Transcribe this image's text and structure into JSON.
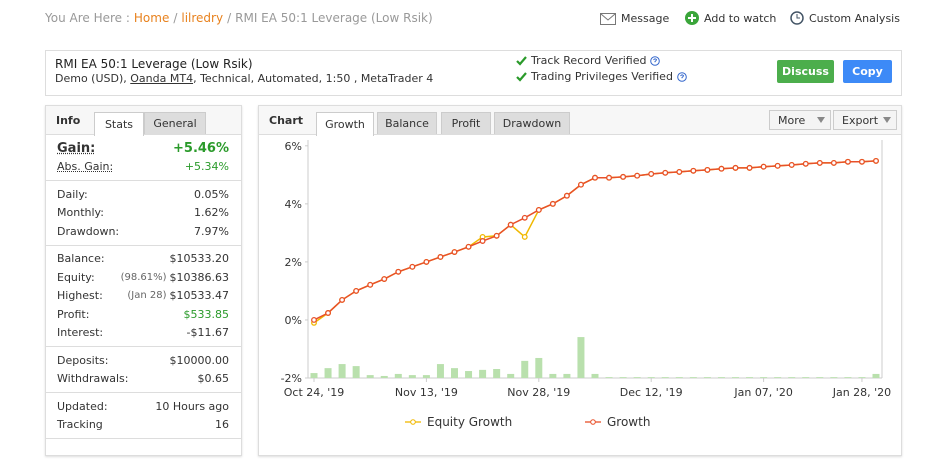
{
  "breadcrumb": {
    "prefix": "You Are Here :",
    "separator": "/",
    "items": [
      "Home",
      "lilredry",
      "RMI EA 50:1 Leverage (Low Rsik)"
    ]
  },
  "actions": [
    "Message",
    "Add to watch",
    "Custom Analysis"
  ],
  "account": {
    "name": "RMI EA 50:1 Leverage (Low Rsik)",
    "details": [
      "Demo (USD), ",
      "Oanda MT4",
      ", Technical, Automated, 1:50 , MetaTrader 4"
    ],
    "verified": [
      "Track Record Verified",
      "Trading Privileges Verified"
    ],
    "buttons": [
      "Discuss",
      "Copy"
    ]
  },
  "info": {
    "title": "Info",
    "tabs": [
      "Stats",
      "General"
    ],
    "sections": [
      [
        {
          "label": "Gain:",
          "value": "+5.46%",
          "color": "#2a9a2a"
        },
        {
          "label": "Abs. Gain:",
          "value": "+5.34%",
          "color": "#2a9a2a"
        }
      ],
      [
        {
          "label": "Daily:",
          "value": "0.05%"
        },
        {
          "label": "Monthly:",
          "value": "1.62%"
        },
        {
          "label": "Drawdown:",
          "value": "7.97%"
        }
      ],
      [
        {
          "label": "Balance:",
          "value": "$10533.20"
        },
        {
          "label": "Equity:",
          "note": "(98.61%)",
          "value": "$10386.63"
        },
        {
          "label": "Highest:",
          "note": "(Jan 28)",
          "value": "$10533.47"
        },
        {
          "label": "Profit:",
          "value": "$533.85",
          "color": "#2a9a2a"
        },
        {
          "label": "Interest:",
          "value": "-$11.67"
        }
      ],
      [
        {
          "label": "Deposits:",
          "value": "$10000.00"
        },
        {
          "label": "Withdrawals:",
          "value": "$0.65"
        }
      ],
      [
        {
          "label": "Updated:",
          "value": "10 Hours ago"
        },
        {
          "label": "Tracking",
          "value": "16"
        }
      ]
    ]
  },
  "chart_panel": {
    "title": "Chart",
    "tabs": [
      "Growth",
      "Balance",
      "Profit",
      "Drawdown"
    ],
    "menus": [
      "More",
      "Export"
    ],
    "chart_data": {
      "type": "line",
      "categories": [
        "Oct 24, '19",
        null,
        null,
        null,
        null,
        null,
        null,
        null,
        "Nov 13, '19",
        null,
        null,
        null,
        null,
        null,
        null,
        null,
        "Nov 28, '19",
        null,
        null,
        null,
        null,
        null,
        null,
        null,
        "Dec 12, '19",
        null,
        null,
        null,
        null,
        null,
        null,
        null,
        "Jan 07, '20",
        null,
        null,
        null,
        null,
        null,
        null,
        "Jan 28, '20",
        null
      ],
      "ylim": [
        -2,
        6.2
      ],
      "yticks": [
        {
          "value": -2,
          "label": "-2%"
        },
        {
          "value": 0,
          "label": "0%"
        },
        {
          "value": 2,
          "label": "2%"
        },
        {
          "value": 4,
          "label": "4%"
        },
        {
          "value": 6,
          "label": "6%"
        }
      ],
      "bars": {
        "color": "#b9e0ad",
        "values": [
          -1.83,
          -1.66,
          -1.52,
          -1.59,
          -1.9,
          -1.93,
          -1.86,
          -1.9,
          -1.9,
          -1.52,
          -1.66,
          -1.76,
          -1.72,
          -1.69,
          -1.86,
          -1.41,
          -1.31,
          -1.86,
          -1.86,
          -0.59,
          -1.86,
          -1.97,
          -1.97,
          -1.97,
          -1.97,
          -1.97,
          -1.97,
          -1.97,
          -1.97,
          -1.97,
          -1.97,
          -1.97,
          -1.97,
          -1.97,
          -1.97,
          -1.97,
          -1.97,
          -1.97,
          -1.97,
          -1.97,
          -1.86
        ]
      },
      "series": [
        {
          "name": "Equity Growth",
          "color": "#f0b800",
          "values": [
            -0.1,
            0.24,
            0.69,
            1.0,
            1.21,
            1.41,
            1.66,
            1.83,
            2.0,
            2.17,
            2.34,
            2.52,
            2.86,
            2.9,
            3.28,
            2.86,
            3.79,
            4.0,
            4.28,
            4.66,
            4.9,
            4.9,
            4.93,
            4.97,
            5.03,
            5.07,
            5.1,
            5.14,
            5.17,
            5.21,
            5.24,
            5.24,
            5.28,
            5.31,
            5.34,
            5.38,
            5.41,
            5.41,
            5.45,
            5.45,
            5.48
          ]
        },
        {
          "name": "Growth",
          "color": "#e8502a",
          "values": [
            0.0,
            0.24,
            0.69,
            1.0,
            1.21,
            1.41,
            1.66,
            1.83,
            2.0,
            2.17,
            2.34,
            2.52,
            2.72,
            2.9,
            3.28,
            3.52,
            3.79,
            4.0,
            4.28,
            4.66,
            4.9,
            4.9,
            4.93,
            4.97,
            5.03,
            5.07,
            5.1,
            5.14,
            5.17,
            5.21,
            5.24,
            5.24,
            5.28,
            5.31,
            5.34,
            5.38,
            5.41,
            5.41,
            5.45,
            5.45,
            5.48
          ]
        }
      ]
    }
  }
}
